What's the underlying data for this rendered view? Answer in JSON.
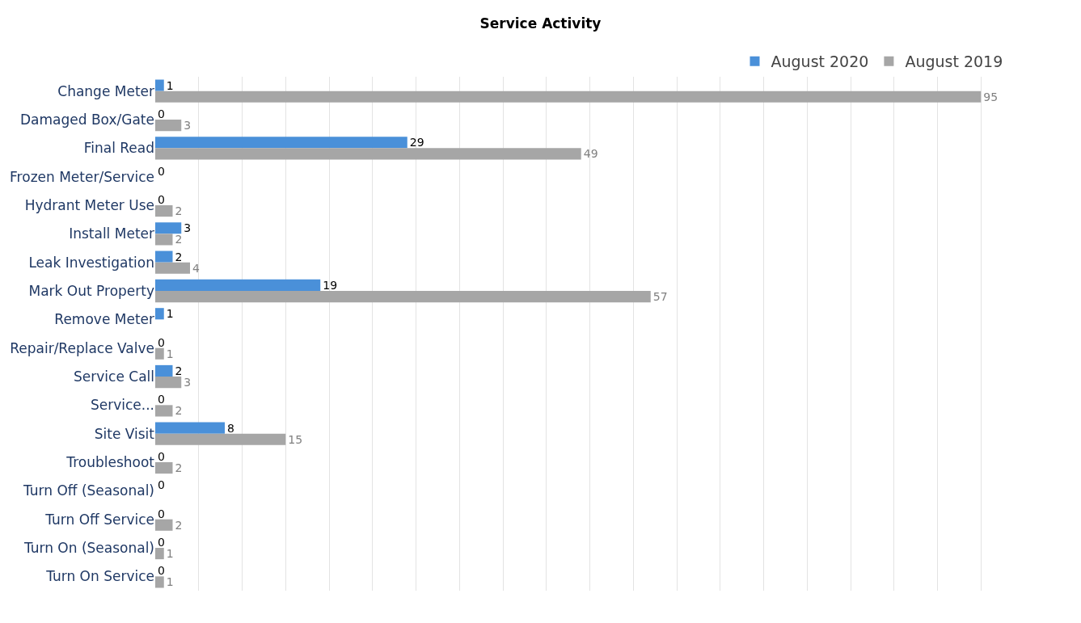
{
  "chart_data": {
    "type": "bar",
    "orientation": "horizontal",
    "title": "Service Activity",
    "categories": [
      "Change Meter",
      "Damaged Box/Gate",
      "Final Read",
      "Frozen Meter/Service",
      "Hydrant Meter Use",
      "Install Meter",
      "Leak Investigation",
      "Mark Out Property",
      "Remove Meter",
      "Repair/Replace Valve",
      "Service Call",
      "Service...",
      "Site Visit",
      "Troubleshoot",
      "Turn Off (Seasonal)",
      "Turn Off Service",
      "Turn On (Seasonal)",
      "Turn On Service"
    ],
    "series": [
      {
        "name": "August 2020",
        "color": "#4a90d9",
        "values": [
          1,
          0,
          29,
          0,
          0,
          3,
          2,
          19,
          1,
          0,
          2,
          0,
          8,
          0,
          0,
          0,
          0,
          0
        ]
      },
      {
        "name": "August 2019",
        "color": "#a6a6a6",
        "values": [
          95,
          3,
          49,
          null,
          2,
          2,
          4,
          57,
          null,
          1,
          3,
          2,
          15,
          2,
          null,
          2,
          1,
          1
        ]
      }
    ],
    "tick_labels": "y",
    "grid": "x",
    "legend": "top right",
    "data_labels": true
  }
}
